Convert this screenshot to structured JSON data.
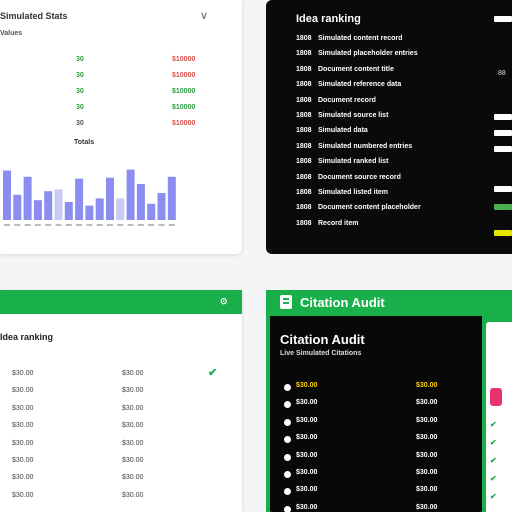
{
  "stats_card": {
    "title": "Simulated Stats",
    "chevron": "∨",
    "subtitle": "Values",
    "rows": [
      {
        "c1": "30",
        "c2": "$10000",
        "c1_color": "#2e9a44",
        "c2_color": "#d9534f"
      },
      {
        "c1": "30",
        "c2": "$10000",
        "c1_color": "#2e9a44",
        "c2_color": "#d9534f"
      },
      {
        "c1": "30",
        "c2": "$10000",
        "c1_color": "#2e9a44",
        "c2_color": "#2e9a44"
      },
      {
        "c1": "30",
        "c2": "$10000",
        "c1_color": "#2e9a44",
        "c2_color": "#2e9a44"
      },
      {
        "c1": "30",
        "c2": "$10000",
        "c1_color": "#555555",
        "c2_color": "#d9534f"
      }
    ],
    "footer": "Totals"
  },
  "chart_data": {
    "type": "bar",
    "values": [
      55,
      28,
      48,
      22,
      32,
      34,
      20,
      46,
      16,
      24,
      47,
      24,
      56,
      40,
      18,
      30,
      48
    ],
    "highlight_indices": [
      5,
      11
    ],
    "colors": {
      "bar": "#8b8ef0",
      "highlight": "#c9caf5"
    }
  },
  "ranking": {
    "title": "Idea ranking",
    "rows": [
      {
        "n": "1808",
        "t": "Simulated content record"
      },
      {
        "n": "1808",
        "t": "Simulated placeholder entries"
      },
      {
        "n": "1808",
        "t": "Document content title"
      },
      {
        "n": "1808",
        "t": "Simulated reference data"
      },
      {
        "n": "1808",
        "t": "Document record"
      },
      {
        "n": "1808",
        "t": "Simulated source list"
      },
      {
        "n": "1808",
        "t": "Simulated data"
      },
      {
        "n": "1808",
        "t": "Simulated numbered entries"
      },
      {
        "n": "1808",
        "t": "Simulated ranked list"
      },
      {
        "n": "1808",
        "t": "Document source record"
      },
      {
        "n": "1808",
        "t": "Simulated listed item"
      },
      {
        "n": "1808",
        "t": "Document content placeholder"
      },
      {
        "n": "1808",
        "t": "Record item"
      }
    ],
    "side_value": "88",
    "chips": [
      {
        "color": "#ffffff",
        "top": 0
      },
      {
        "color": "#ffffff",
        "top": 1
      },
      {
        "color": "#ffffff",
        "top": 2
      },
      {
        "color": "#ffffff",
        "top": 3
      },
      {
        "color": "#ffffff",
        "top": 4
      },
      {
        "color": "#4caf50",
        "top": 5
      },
      {
        "color": "#e5e500",
        "top": 6
      }
    ]
  },
  "table_card": {
    "header_icon": "⊙",
    "title": "Idea ranking",
    "check": "✔",
    "rows": [
      {
        "a": "$30.00",
        "b": "$30.00"
      },
      {
        "a": "$30.00",
        "b": "$30.00"
      },
      {
        "a": "$30.00",
        "b": "$30.00"
      },
      {
        "a": "$30.00",
        "b": "$30.00"
      },
      {
        "a": "$30.00",
        "b": "$30.00"
      },
      {
        "a": "$30.00",
        "b": "$30.00"
      },
      {
        "a": "$30.00",
        "b": "$30.00"
      },
      {
        "a": "$30.00",
        "b": "$30.00"
      }
    ]
  },
  "citation": {
    "header_title": "Citation Audit",
    "card_title": "Citation Audit",
    "card_subtitle": "Live Simulated Citations",
    "rows": [
      {
        "ref": "$30.00",
        "status": "$30.00",
        "highlight": true
      },
      {
        "ref": "$30.00",
        "status": "$30.00",
        "highlight": false
      },
      {
        "ref": "$30.00",
        "status": "$30.00",
        "highlight": false
      },
      {
        "ref": "$30.00",
        "status": "$30.00",
        "highlight": false
      },
      {
        "ref": "$30.00",
        "status": "$30.00",
        "highlight": false
      },
      {
        "ref": "$30.00",
        "status": "$30.00",
        "highlight": false
      },
      {
        "ref": "$30.00",
        "status": "$30.00",
        "highlight": false
      },
      {
        "ref": "$30.00",
        "status": "$30.00",
        "highlight": false
      }
    ],
    "strip_marks": [
      "✔",
      "✔",
      "✔",
      "✔",
      "✔"
    ]
  }
}
